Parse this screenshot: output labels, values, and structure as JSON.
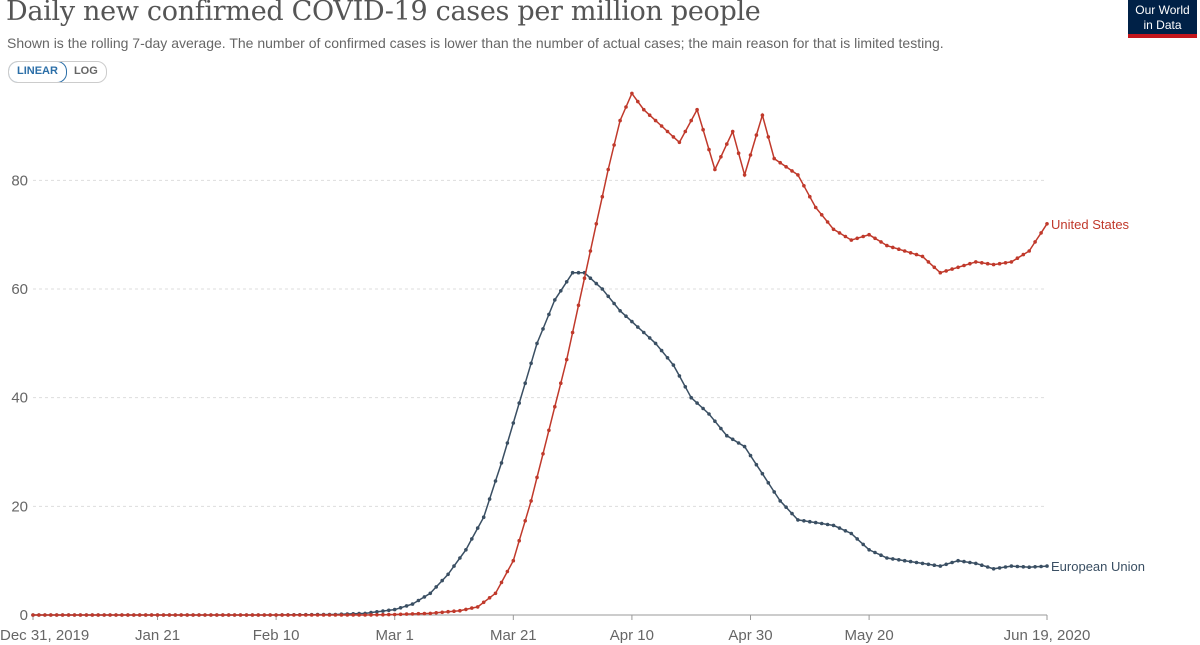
{
  "header": {
    "title": "Daily new confirmed COVID-19 cases per million people",
    "subtitle": "Shown is the rolling 7-day average. The number of confirmed cases is lower than the number of actual cases; the main reason for that is limited testing.",
    "logo_line1": "Our World",
    "logo_line2": "in Data",
    "logo_color": "#002147",
    "logo_accent": "#c4161c"
  },
  "scale_toggle": {
    "linear_label": "LINEAR",
    "log_label": "LOG",
    "selected": "LINEAR"
  },
  "chart_data": {
    "type": "line",
    "title": "Daily new confirmed COVID-19 cases per million people",
    "xlabel": "",
    "ylabel": "",
    "y_scale": "linear",
    "ylim": [
      0,
      97
    ],
    "grid": "horizontal dotted",
    "legend": "labels at line ends (right)",
    "x_start_date": "2019-12-31",
    "x_end_date": "2020-06-19",
    "x_ticks": [
      {
        "date": "2019-12-31",
        "label": "Dec 31, 2019"
      },
      {
        "date": "2020-01-21",
        "label": "Jan 21"
      },
      {
        "date": "2020-02-10",
        "label": "Feb 10"
      },
      {
        "date": "2020-03-01",
        "label": "Mar 1"
      },
      {
        "date": "2020-03-21",
        "label": "Mar 21"
      },
      {
        "date": "2020-04-10",
        "label": "Apr 10"
      },
      {
        "date": "2020-04-30",
        "label": "Apr 30"
      },
      {
        "date": "2020-05-20",
        "label": "May 20"
      },
      {
        "date": "2020-06-19",
        "label": "Jun 19, 2020"
      }
    ],
    "y_ticks": [
      0,
      20,
      40,
      60,
      80
    ],
    "series": [
      {
        "name": "European Union",
        "color": "#3a4f63",
        "points": [
          [
            "2019-12-31",
            0
          ],
          [
            "2020-01-21",
            0
          ],
          [
            "2020-02-10",
            0
          ],
          [
            "2020-02-20",
            0.1
          ],
          [
            "2020-02-25",
            0.3
          ],
          [
            "2020-03-01",
            1.0
          ],
          [
            "2020-03-04",
            2.0
          ],
          [
            "2020-03-07",
            4.0
          ],
          [
            "2020-03-10",
            7.5
          ],
          [
            "2020-03-13",
            12
          ],
          [
            "2020-03-16",
            18
          ],
          [
            "2020-03-19",
            28
          ],
          [
            "2020-03-22",
            39
          ],
          [
            "2020-03-25",
            50
          ],
          [
            "2020-03-28",
            58
          ],
          [
            "2020-03-31",
            63
          ],
          [
            "2020-04-02",
            63
          ],
          [
            "2020-04-05",
            60
          ],
          [
            "2020-04-08",
            56
          ],
          [
            "2020-04-11",
            53
          ],
          [
            "2020-04-14",
            50
          ],
          [
            "2020-04-17",
            46
          ],
          [
            "2020-04-20",
            40
          ],
          [
            "2020-04-23",
            37
          ],
          [
            "2020-04-26",
            33
          ],
          [
            "2020-04-29",
            31
          ],
          [
            "2020-05-02",
            26
          ],
          [
            "2020-05-05",
            21
          ],
          [
            "2020-05-08",
            17.5
          ],
          [
            "2020-05-11",
            17
          ],
          [
            "2020-05-14",
            16.5
          ],
          [
            "2020-05-17",
            15
          ],
          [
            "2020-05-20",
            12
          ],
          [
            "2020-05-23",
            10.5
          ],
          [
            "2020-05-26",
            10
          ],
          [
            "2020-05-29",
            9.5
          ],
          [
            "2020-06-01",
            9
          ],
          [
            "2020-06-04",
            10
          ],
          [
            "2020-06-07",
            9.5
          ],
          [
            "2020-06-10",
            8.5
          ],
          [
            "2020-06-13",
            9
          ],
          [
            "2020-06-16",
            8.8
          ],
          [
            "2020-06-19",
            9
          ]
        ]
      },
      {
        "name": "United States",
        "color": "#c0392b",
        "points": [
          [
            "2019-12-31",
            0
          ],
          [
            "2020-01-21",
            0
          ],
          [
            "2020-02-10",
            0
          ],
          [
            "2020-02-25",
            0
          ],
          [
            "2020-03-01",
            0.1
          ],
          [
            "2020-03-07",
            0.3
          ],
          [
            "2020-03-12",
            0.8
          ],
          [
            "2020-03-15",
            1.5
          ],
          [
            "2020-03-18",
            4
          ],
          [
            "2020-03-21",
            10
          ],
          [
            "2020-03-24",
            21
          ],
          [
            "2020-03-27",
            34
          ],
          [
            "2020-03-30",
            47
          ],
          [
            "2020-04-02",
            62
          ],
          [
            "2020-04-04",
            72
          ],
          [
            "2020-04-06",
            82
          ],
          [
            "2020-04-08",
            91
          ],
          [
            "2020-04-10",
            96
          ],
          [
            "2020-04-12",
            93
          ],
          [
            "2020-04-15",
            90
          ],
          [
            "2020-04-18",
            87
          ],
          [
            "2020-04-21",
            93
          ],
          [
            "2020-04-24",
            82
          ],
          [
            "2020-04-27",
            89
          ],
          [
            "2020-04-29",
            81
          ],
          [
            "2020-05-02",
            92
          ],
          [
            "2020-05-04",
            84
          ],
          [
            "2020-05-08",
            81
          ],
          [
            "2020-05-11",
            75
          ],
          [
            "2020-05-14",
            71
          ],
          [
            "2020-05-17",
            69
          ],
          [
            "2020-05-20",
            70
          ],
          [
            "2020-05-23",
            68
          ],
          [
            "2020-05-26",
            67
          ],
          [
            "2020-05-29",
            66
          ],
          [
            "2020-06-01",
            63
          ],
          [
            "2020-06-04",
            64
          ],
          [
            "2020-06-07",
            65
          ],
          [
            "2020-06-10",
            64.5
          ],
          [
            "2020-06-13",
            65
          ],
          [
            "2020-06-16",
            67
          ],
          [
            "2020-06-19",
            72
          ]
        ]
      }
    ]
  }
}
